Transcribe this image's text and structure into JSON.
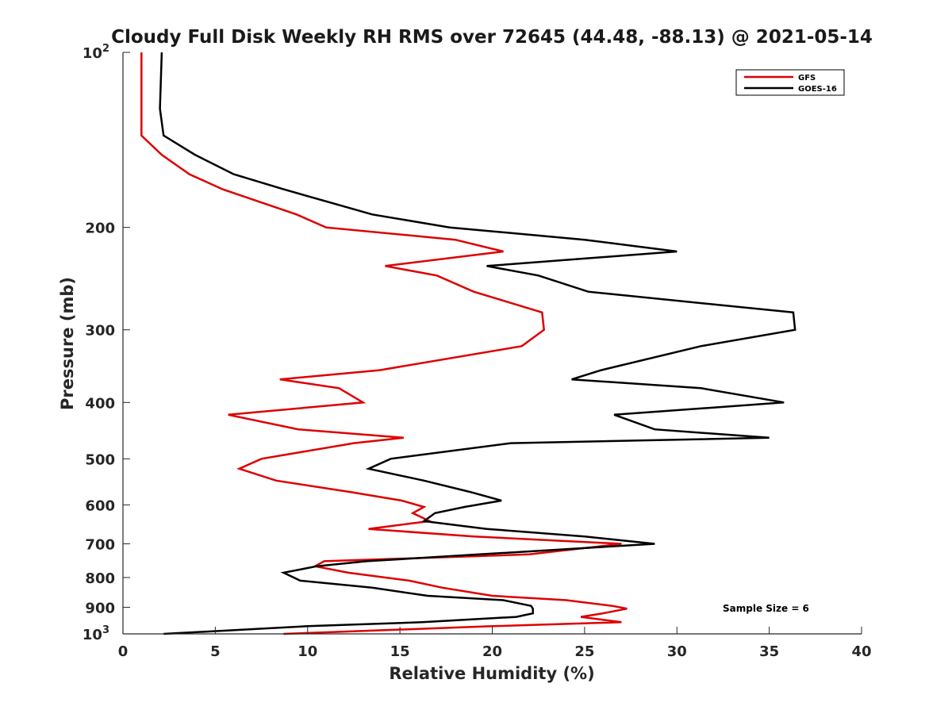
{
  "chart_data": {
    "type": "line",
    "title": "Cloudy Full Disk Weekly RH RMS over 72645 (44.48, -88.13) @ 2021-05-14",
    "xlabel": "Relative Humidity (%)",
    "ylabel": "Pressure (mb)",
    "xlim": [
      0,
      40
    ],
    "ylim": [
      100,
      1000
    ],
    "yscale": "log",
    "y_reversed": true,
    "xticks": [
      0,
      5,
      10,
      15,
      20,
      25,
      30,
      35,
      40
    ],
    "yticks": [
      {
        "value": 100,
        "label": "10",
        "sup": "2"
      },
      {
        "value": 200,
        "label": "200"
      },
      {
        "value": 300,
        "label": "300"
      },
      {
        "value": 400,
        "label": "400"
      },
      {
        "value": 500,
        "label": "500"
      },
      {
        "value": 600,
        "label": "600"
      },
      {
        "value": 700,
        "label": "700"
      },
      {
        "value": 800,
        "label": "800"
      },
      {
        "value": 900,
        "label": "900"
      },
      {
        "value": 1000,
        "label": "10",
        "sup": "3"
      }
    ],
    "grid": false,
    "legend_position": "top-right",
    "annotation": "Sample Size = 6",
    "series": [
      {
        "name": "GFS",
        "color": "#dd0000",
        "points": [
          [
            1.0,
            100
          ],
          [
            1.0,
            125
          ],
          [
            1.0,
            139
          ],
          [
            2.1,
            150
          ],
          [
            3.6,
            162
          ],
          [
            5.4,
            172
          ],
          [
            9.4,
            190
          ],
          [
            11.0,
            200
          ],
          [
            18.0,
            210
          ],
          [
            20.6,
            220
          ],
          [
            14.2,
            233
          ],
          [
            17.0,
            242
          ],
          [
            19.0,
            258
          ],
          [
            22.7,
            280
          ],
          [
            22.8,
            300
          ],
          [
            21.6,
            320
          ],
          [
            13.9,
            352
          ],
          [
            8.5,
            365
          ],
          [
            11.7,
            378
          ],
          [
            13.0,
            400
          ],
          [
            5.7,
            420
          ],
          [
            9.5,
            445
          ],
          [
            15.2,
            460
          ],
          [
            12.5,
            470
          ],
          [
            7.5,
            500
          ],
          [
            6.3,
            520
          ],
          [
            8.3,
            545
          ],
          [
            12.3,
            570
          ],
          [
            15.1,
            590
          ],
          [
            16.3,
            605
          ],
          [
            15.7,
            620
          ],
          [
            16.6,
            640
          ],
          [
            13.3,
            660
          ],
          [
            19.0,
            680
          ],
          [
            27.0,
            700
          ],
          [
            22.0,
            730
          ],
          [
            10.9,
            750
          ],
          [
            10.4,
            765
          ],
          [
            12.2,
            785
          ],
          [
            15.5,
            810
          ],
          [
            17.3,
            833
          ],
          [
            20.0,
            860
          ],
          [
            24.0,
            875
          ],
          [
            26.5,
            895
          ],
          [
            27.3,
            905
          ],
          [
            26.0,
            922
          ],
          [
            24.8,
            935
          ],
          [
            27.0,
            955
          ],
          [
            20.0,
            970
          ],
          [
            8.7,
            1000
          ]
        ]
      },
      {
        "name": "GOES-16",
        "color": "#000000",
        "points": [
          [
            2.1,
            100
          ],
          [
            2.0,
            125
          ],
          [
            2.2,
            139
          ],
          [
            3.9,
            150
          ],
          [
            6.0,
            162
          ],
          [
            8.7,
            172
          ],
          [
            13.5,
            190
          ],
          [
            17.7,
            200
          ],
          [
            25.0,
            210
          ],
          [
            30.0,
            220
          ],
          [
            19.7,
            233
          ],
          [
            22.5,
            242
          ],
          [
            25.2,
            258
          ],
          [
            36.3,
            280
          ],
          [
            36.4,
            300
          ],
          [
            31.3,
            320
          ],
          [
            25.9,
            352
          ],
          [
            24.3,
            365
          ],
          [
            31.3,
            378
          ],
          [
            35.8,
            400
          ],
          [
            26.6,
            420
          ],
          [
            28.8,
            445
          ],
          [
            35.0,
            460
          ],
          [
            21.0,
            470
          ],
          [
            14.5,
            500
          ],
          [
            13.3,
            520
          ],
          [
            16.3,
            545
          ],
          [
            18.8,
            570
          ],
          [
            20.5,
            590
          ],
          [
            18.5,
            605
          ],
          [
            16.9,
            620
          ],
          [
            16.3,
            640
          ],
          [
            19.7,
            660
          ],
          [
            25.0,
            680
          ],
          [
            28.8,
            700
          ],
          [
            19.3,
            730
          ],
          [
            13.2,
            750
          ],
          [
            10.5,
            765
          ],
          [
            8.7,
            785
          ],
          [
            9.6,
            810
          ],
          [
            13.5,
            833
          ],
          [
            16.5,
            860
          ],
          [
            20.6,
            875
          ],
          [
            22.1,
            895
          ],
          [
            22.2,
            905
          ],
          [
            22.2,
            922
          ],
          [
            21.3,
            935
          ],
          [
            16.2,
            955
          ],
          [
            10.0,
            970
          ],
          [
            2.2,
            1000
          ]
        ]
      }
    ]
  }
}
